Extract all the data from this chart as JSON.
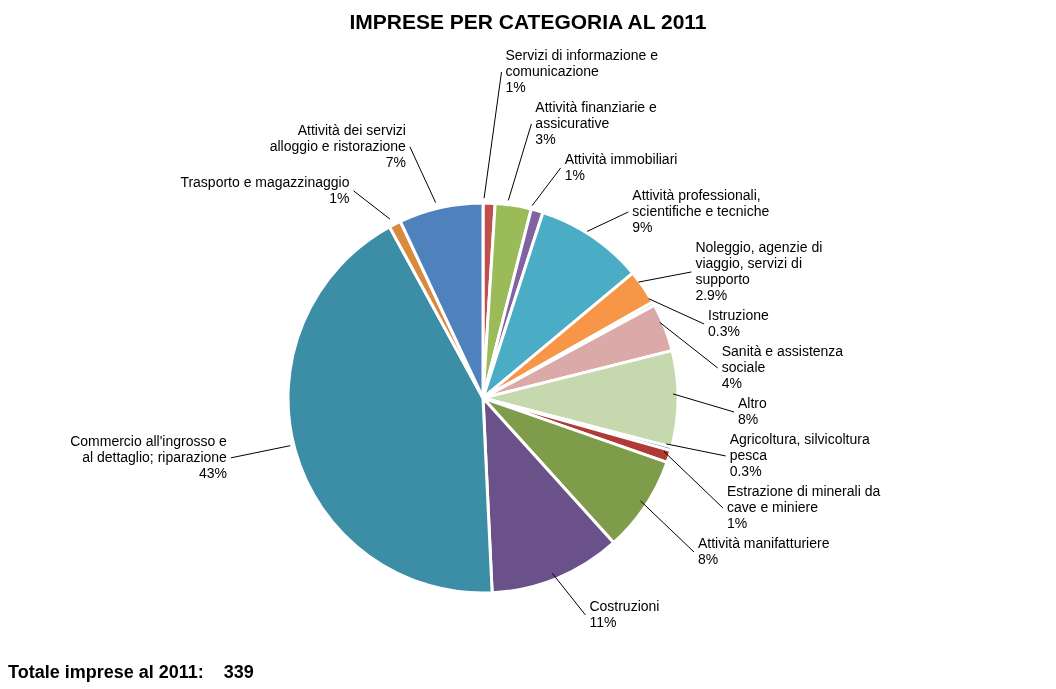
{
  "chart_data": {
    "type": "pie",
    "title": "IMPRESE PER CATEGORIA AL 2011",
    "categories": [
      "Servizi di informazione e comunicazione",
      "Attività finanziarie e assicurative",
      "Attività immobiliari",
      "Attività professionali, scientifiche e tecniche",
      "Noleggio, agenzie di viaggio, servizi di supporto",
      "Istruzione",
      "Sanità e assistenza sociale",
      "Altro",
      "Agricoltura, silvicoltura pesca",
      "Estrazione di minerali da cave e miniere",
      "Attività manifatturiere",
      "Costruzioni",
      "Commercio all'ingrosso e al dettaglio; riparazione",
      "Trasporto e magazzinaggio",
      "Attività dei servizi alloggio e ristorazione"
    ],
    "values": [
      1,
      3,
      1,
      9,
      2.9,
      0.3,
      4,
      8,
      0.3,
      1,
      8,
      11,
      43,
      1,
      7
    ],
    "value_labels": [
      "1%",
      "3%",
      "1%",
      "9%",
      "2.9%",
      "0.3%",
      "4%",
      "8%",
      "0.3%",
      "1%",
      "8%",
      "11%",
      "43%",
      "1%",
      "7%"
    ],
    "colors": [
      "#c0504d",
      "#9bbb59",
      "#8064a2",
      "#4bacc6",
      "#f79646",
      "#a5bcd9",
      "#dba9a8",
      "#c6d8ae",
      "#4f81bd",
      "#b03a36",
      "#7f9c4a",
      "#6b5189",
      "#3b8ea5",
      "#d98a3f",
      "#4f81bd"
    ],
    "annotations": [
      "Totale imprese al 2011:    339"
    ]
  }
}
